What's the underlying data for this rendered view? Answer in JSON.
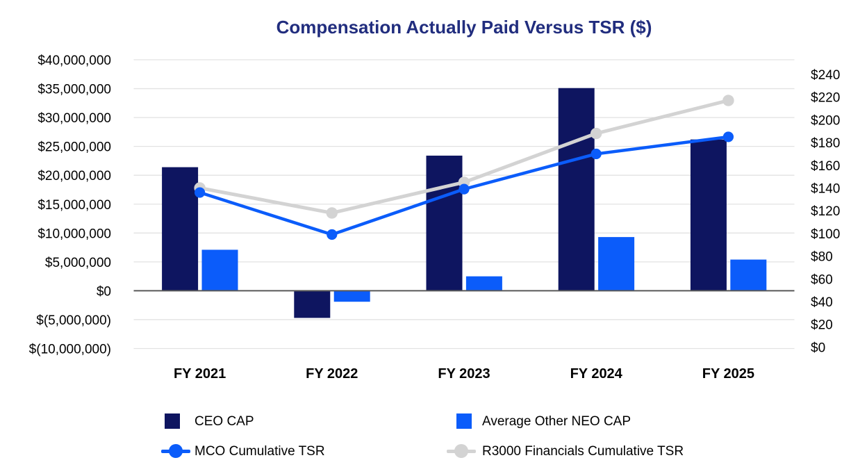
{
  "title": "Compensation Actually Paid Versus TSR ($)",
  "chart_data": {
    "type": "bar+line combo",
    "categories": [
      "FY 2021",
      "FY 2022",
      "FY 2023",
      "FY 2024",
      "FY 2025"
    ],
    "bar_series": [
      {
        "name": "CEO CAP",
        "axis": "left",
        "color": "#0E1560",
        "values": [
          21400000,
          -4700000,
          23400000,
          35100000,
          26200000
        ]
      },
      {
        "name": "Average Other NEO CAP",
        "axis": "left",
        "color": "#0B5CFA",
        "values": [
          7100000,
          -1900000,
          2500000,
          9300000,
          5400000
        ]
      }
    ],
    "line_series": [
      {
        "name": "R3000 Financials Cumulative TSR",
        "axis": "right",
        "color": "#D3D3D3",
        "values": [
          140,
          118,
          145,
          188,
          217
        ]
      },
      {
        "name": "MCO Cumulative TSR",
        "axis": "right",
        "color": "#0B5CFA",
        "values": [
          136,
          99,
          139,
          170,
          185
        ]
      }
    ],
    "left_axis": {
      "min": -10000000,
      "max": 40000000,
      "step": 5000000,
      "tick_labels": [
        "$40,000,000",
        "$35,000,000",
        "$30,000,000",
        "$25,000,000",
        "$20,000,000",
        "$15,000,000",
        "$10,000,000",
        "$5,000,000",
        "$0",
        "$(5,000,000)",
        "$(10,000,000)"
      ],
      "tick_values": [
        40000000,
        35000000,
        30000000,
        25000000,
        20000000,
        15000000,
        10000000,
        5000000,
        0,
        -5000000,
        -10000000
      ]
    },
    "right_axis": {
      "min": 0,
      "max": 240,
      "step": 20,
      "tick_labels": [
        "$240",
        "$220",
        "$200",
        "$180",
        "$160",
        "$140",
        "$120",
        "$100",
        "$80",
        "$60",
        "$40",
        "$20",
        "$0"
      ],
      "tick_values": [
        240,
        220,
        200,
        180,
        160,
        140,
        120,
        100,
        80,
        60,
        40,
        20,
        0
      ]
    },
    "grid": true,
    "legend_position": "bottom"
  },
  "legend": {
    "items": [
      {
        "label": "CEO CAP",
        "marker": "square",
        "color": "#0E1560"
      },
      {
        "label": "Average Other NEO CAP",
        "marker": "square",
        "color": "#0B5CFA"
      },
      {
        "label": "MCO Cumulative TSR",
        "marker": "line-dot",
        "color": "#0B5CFA"
      },
      {
        "label": "R3000 Financials Cumulative TSR",
        "marker": "line-dot",
        "color": "#D3D3D3"
      }
    ]
  },
  "colors": {
    "title": "#212D7E",
    "gridline": "#E2E2E2",
    "zero_axis": "#595959",
    "axis_text": "#000000"
  }
}
